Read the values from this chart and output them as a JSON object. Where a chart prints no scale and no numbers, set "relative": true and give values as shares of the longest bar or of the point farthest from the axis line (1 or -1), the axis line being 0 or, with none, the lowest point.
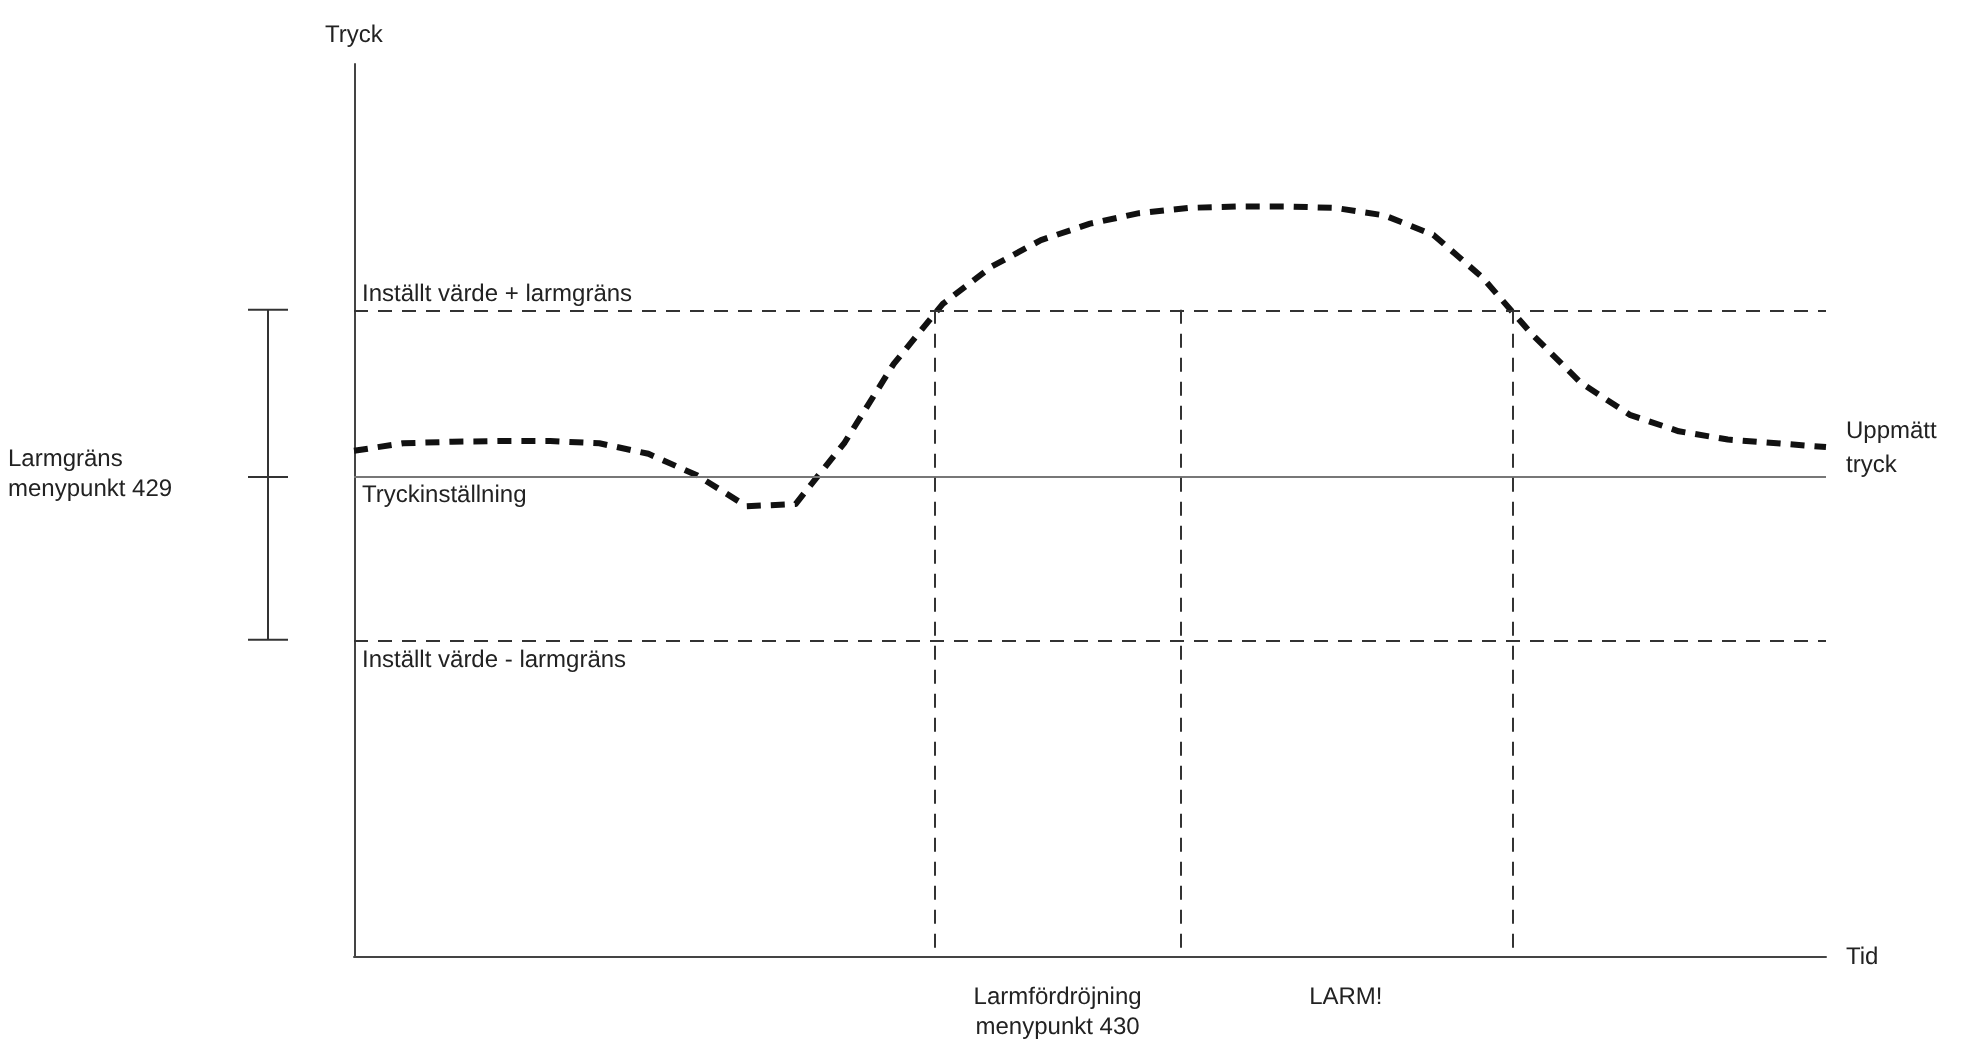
{
  "chart_data": {
    "type": "line",
    "xlabel": "Tid",
    "relative": true,
    "tick_labels": false,
    "grid": false,
    "legend": false,
    "marker": "none",
    "line_style": "dashed",
    "categories": [
      null,
      null,
      null,
      null,
      null,
      null,
      null,
      null,
      null,
      null,
      null,
      null,
      null,
      null,
      null,
      null,
      null,
      null,
      null,
      null,
      null,
      null,
      null,
      null,
      null,
      null,
      null,
      null,
      null,
      null,
      null
    ],
    "series": [
      {
        "name": "Uppmätt tryck",
        "color": "#111111",
        "values": [
          0.674,
          0.684,
          0.686,
          0.687,
          0.687,
          0.684,
          0.67,
          0.641,
          0.6,
          0.603,
          0.685,
          0.79,
          0.87,
          0.92,
          0.955,
          0.977,
          0.991,
          0.998,
          1,
          1,
          0.998,
          0.988,
          0.962,
          0.905,
          0.83,
          0.765,
          0.722,
          0.7,
          0.689,
          0.684,
          0.679
        ]
      }
    ],
    "ref_lines": [
      {
        "axis": "y",
        "value": 0.862,
        "label": "Inställt värde + larmgräns",
        "line_style": "dashed",
        "color": "#333333"
      },
      {
        "axis": "y",
        "value": 0.639,
        "label": "Tryckinställning",
        "line_style": "solid",
        "color": "#777777"
      },
      {
        "axis": "y",
        "value": 0.422,
        "label": "Inställt värde - larmgräns",
        "line_style": "dashed",
        "color": "#333333"
      }
    ],
    "annotations": [
      "Larmgräns menypunkt 429",
      "Larmfördröjning menypunkt 430",
      "LARM!",
      "Tryck"
    ]
  }
}
